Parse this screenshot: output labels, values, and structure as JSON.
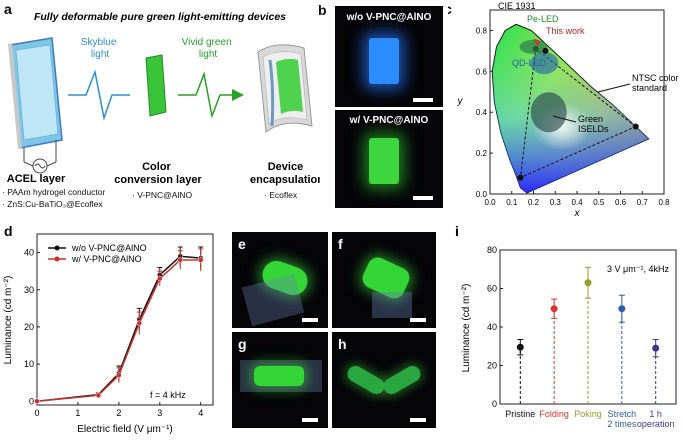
{
  "panel_a": {
    "label": "a",
    "title": "Fully deformable pure green light-emitting devices",
    "skyblue_light": [
      "Skyblue",
      "light"
    ],
    "green_light": [
      "Vivid green",
      "light"
    ],
    "acel": {
      "title": "ACEL layer",
      "items": [
        "· PAAm hydrogel conductor",
        "· ZnS:Cu-BaTiO₃@Ecoflex"
      ]
    },
    "ccl": {
      "title": [
        "Color",
        "conversion layer"
      ],
      "items": [
        "· V-PNC@AlNO"
      ]
    },
    "enc": {
      "title": [
        "Device",
        "encapsulation"
      ],
      "items": [
        "· Ecoflex"
      ]
    }
  },
  "panel_b": {
    "label": "b",
    "top_caption": "w/o V-PNC@AlNO",
    "bottom_caption": "w/ V-PNC@AlNO"
  },
  "panel_c": {
    "label": "c",
    "title": "CIE 1931",
    "xlabel": "x",
    "ylabel": "y",
    "x_ticks": [
      "0.0",
      "0.1",
      "0.2",
      "0.3",
      "0.4",
      "0.5",
      "0.6",
      "0.7",
      "0.8"
    ],
    "y_ticks": [
      "0.0",
      "0.2",
      "0.4",
      "0.6",
      "0.8"
    ],
    "annotations": {
      "pe_led": "Pe-LED",
      "this_work": "This work",
      "qd_led": "QD-LED",
      "ntsc": [
        "NTSC color",
        "standard"
      ],
      "green_iseld": [
        "Green",
        "ISELDs"
      ]
    }
  },
  "panel_d": {
    "label": "d",
    "xlabel": "Electric field (V μm⁻¹)",
    "ylabel": "Luminance (cd m⁻²)",
    "note": "f = 4 kHz",
    "x_ticks": [
      "0",
      "1",
      "2",
      "3",
      "4"
    ],
    "y_ticks": [
      "0",
      "10",
      "20",
      "30",
      "40"
    ]
  },
  "panel_i": {
    "label": "i",
    "note": "3 V μm⁻¹, 4kHz",
    "ylabel": "Luminance (cd m⁻²)",
    "y_ticks": [
      "0",
      "20",
      "40",
      "60",
      "80"
    ],
    "categories": [
      {
        "lines": [
          "Pristine"
        ],
        "color": "#111111"
      },
      {
        "lines": [
          "Folding"
        ],
        "color": "#d9342b"
      },
      {
        "lines": [
          "Poking"
        ],
        "color": "#9a9a2a"
      },
      {
        "lines": [
          "Stretch",
          "2 times"
        ],
        "color": "#2a5caa"
      },
      {
        "lines": [
          "1 h",
          "operation"
        ],
        "color": "#3a3a8a"
      }
    ]
  },
  "photo_labels": {
    "e": "e",
    "f": "f",
    "g": "g",
    "h": "h"
  },
  "chart_data": [
    {
      "type": "line",
      "panel": "d",
      "xlabel": "Electric field (V μm⁻¹)",
      "ylabel": "Luminance (cd m⁻²)",
      "xlim": [
        0,
        4.3
      ],
      "ylim": [
        -1,
        45
      ],
      "legend_position": "top-left",
      "series": [
        {
          "name": "w/o V-PNC@AlNO",
          "color": "#111111",
          "x": [
            0,
            1.5,
            2,
            2.5,
            3,
            3.5,
            4
          ],
          "y": [
            0,
            1.8,
            7.5,
            22,
            34,
            39,
            38.5
          ],
          "err": [
            0.3,
            0.5,
            2,
            3,
            2,
            2.5,
            3
          ]
        },
        {
          "name": "w/ V-PNC@AlNO",
          "color": "#c9302c",
          "x": [
            0,
            1.5,
            2,
            2.5,
            3,
            3.5,
            4
          ],
          "y": [
            0,
            1.6,
            7,
            21,
            33,
            38,
            38
          ],
          "err": [
            0.3,
            0.5,
            2,
            3,
            2,
            2.5,
            3
          ]
        }
      ]
    },
    {
      "type": "scatter",
      "panel": "i",
      "ylabel": "Luminance (cd m⁻²)",
      "ylim": [
        0,
        80
      ],
      "categories": [
        "Pristine",
        "Folding",
        "Poking",
        "Stretch 2 times",
        "1 h operation"
      ],
      "values": [
        29.5,
        49.5,
        63,
        49.5,
        29
      ],
      "errors": [
        4,
        5,
        8,
        7,
        4.5
      ]
    }
  ]
}
